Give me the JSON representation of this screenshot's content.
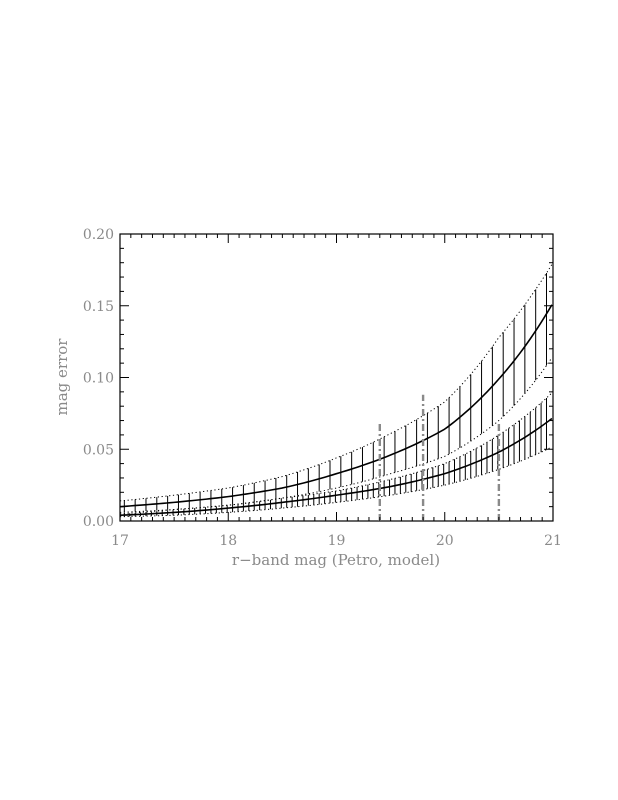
{
  "chart_data": {
    "type": "line",
    "title": "",
    "xlabel": "r−band mag (Petro, model)",
    "ylabel": "mag error",
    "xlim": [
      17,
      21
    ],
    "ylim": [
      0.0,
      0.2
    ],
    "x_ticks": [
      17,
      18,
      19,
      20,
      21
    ],
    "x_tick_labels": [
      "17",
      "18",
      "19",
      "20",
      "21"
    ],
    "y_ticks": [
      0.0,
      0.05,
      0.1,
      0.15,
      0.2
    ],
    "y_tick_labels": [
      "0.00",
      "0.05",
      "0.10",
      "0.15",
      "0.20"
    ],
    "grid": false,
    "series": [
      {
        "style": "solid-with-error-bars",
        "x": [
          17.0,
          17.5,
          18.0,
          18.5,
          19.0,
          19.5,
          20.0,
          20.5,
          21.0
        ],
        "y": [
          0.01,
          0.013,
          0.017,
          0.023,
          0.033,
          0.046,
          0.064,
          0.099,
          0.152
        ],
        "upper": [
          0.014,
          0.018,
          0.023,
          0.031,
          0.044,
          0.061,
          0.083,
          0.128,
          0.18
        ],
        "lower": [
          0.006,
          0.008,
          0.011,
          0.016,
          0.023,
          0.033,
          0.045,
          0.07,
          0.115
        ]
      },
      {
        "style": "solid-with-error-bars",
        "x": [
          17.0,
          17.5,
          18.0,
          18.5,
          19.0,
          19.5,
          20.0,
          20.5,
          21.0
        ],
        "y": [
          0.004,
          0.006,
          0.009,
          0.013,
          0.018,
          0.024,
          0.033,
          0.048,
          0.072
        ],
        "upper": [
          0.005,
          0.008,
          0.011,
          0.016,
          0.021,
          0.029,
          0.04,
          0.06,
          0.09
        ],
        "lower": [
          0.003,
          0.004,
          0.006,
          0.009,
          0.013,
          0.018,
          0.025,
          0.036,
          0.052
        ]
      }
    ],
    "vertical_markers": [
      {
        "x": 19.4,
        "ymin": 0.0,
        "ymax": 0.068,
        "style": "dash-dot",
        "color": "#8a8a8a"
      },
      {
        "x": 19.8,
        "ymin": 0.0,
        "ymax": 0.088,
        "style": "dash-dot",
        "color": "#8a8a8a"
      },
      {
        "x": 20.5,
        "ymin": 0.0,
        "ymax": 0.068,
        "style": "dash-dot",
        "color": "#8a8a8a"
      }
    ],
    "colors": {
      "curve": "#000000",
      "label": "#8a8a8a",
      "marker": "#8a8a8a"
    }
  }
}
